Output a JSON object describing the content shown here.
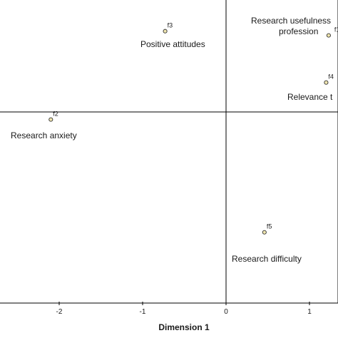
{
  "chart_data": {
    "type": "scatter",
    "xlabel": "Dimension 1",
    "ylabel": "",
    "xlim": [
      -2.7,
      1.35
    ],
    "ylim": [
      -1.6,
      1.2
    ],
    "grid": false,
    "reference_lines": {
      "x": 0,
      "y": 0
    },
    "xticks": [
      {
        "value": -2,
        "label": "-2"
      },
      {
        "value": -1,
        "label": "-1"
      },
      {
        "value": 0,
        "label": "0"
      },
      {
        "value": 1,
        "label": "1"
      }
    ],
    "points": [
      {
        "id": "f1",
        "label_lines": [
          "Research usefulness",
          "profession"
        ],
        "x": 1.23,
        "y": 0.91,
        "color": "#f0e6b0"
      },
      {
        "id": "f2",
        "label_lines": [
          "Research anxiety"
        ],
        "x": -2.1,
        "y": -0.09,
        "color": "#f0e6b0"
      },
      {
        "id": "f3",
        "label_lines": [
          "Positive attitudes"
        ],
        "x": -0.73,
        "y": 0.96,
        "color": "#f0e6b0"
      },
      {
        "id": "f4",
        "label_lines": [
          "Relevance t"
        ],
        "x": 1.2,
        "y": 0.35,
        "color": "#f0e6b0"
      },
      {
        "id": "f5",
        "label_lines": [
          "Research difficulty"
        ],
        "x": 0.46,
        "y": -1.43,
        "color": "#f0e6b0"
      }
    ]
  }
}
